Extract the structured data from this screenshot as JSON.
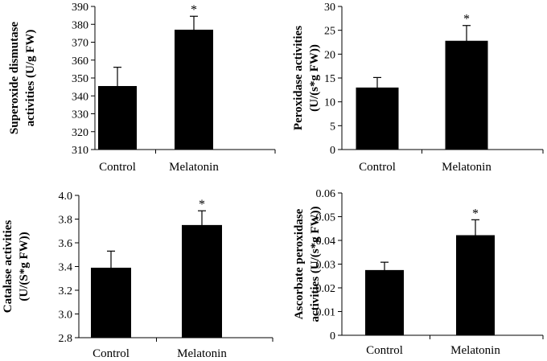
{
  "chart_data": [
    {
      "type": "bar",
      "categories": [
        "Control",
        "Melatonin"
      ],
      "values": [
        345.5,
        377
      ],
      "errors": [
        10.5,
        7.5
      ],
      "significance": [
        "",
        "*"
      ],
      "ylabel_lines": [
        "Superoxide dismutase",
        "activities (U/g FW)"
      ],
      "ylim": [
        310,
        390
      ],
      "ticks": [
        310,
        320,
        330,
        340,
        350,
        360,
        370,
        380,
        390
      ],
      "tick_labels": [
        "310",
        "320",
        "330",
        "340",
        "350",
        "360",
        "370",
        "380",
        "390"
      ],
      "bar_color": "#000000"
    },
    {
      "type": "bar",
      "categories": [
        "Control",
        "Melatonin"
      ],
      "values": [
        13,
        22.8
      ],
      "errors": [
        2.1,
        3.2
      ],
      "significance": [
        "",
        "*"
      ],
      "ylabel_lines": [
        "Peroxidase activities",
        "(U/(s*g FW))"
      ],
      "ylim": [
        0,
        30
      ],
      "ticks": [
        0,
        5,
        10,
        15,
        20,
        25,
        30
      ],
      "tick_labels": [
        "0",
        "5",
        "10",
        "15",
        "20",
        "25",
        "30"
      ],
      "bar_color": "#000000"
    },
    {
      "type": "bar",
      "categories": [
        "Control",
        "Melatonin"
      ],
      "values": [
        3.39,
        3.75
      ],
      "errors": [
        0.14,
        0.12
      ],
      "significance": [
        "",
        "*"
      ],
      "ylabel_lines": [
        "Catalase activities",
        "(U/(S*g FW))"
      ],
      "ylim": [
        2.8,
        4.0
      ],
      "ticks": [
        2.8,
        3.0,
        3.2,
        3.4,
        3.6,
        3.8,
        4.0
      ],
      "tick_labels": [
        "2.8",
        "3.0",
        "3.2",
        "3.4",
        "3.6",
        "3.8",
        "4.0"
      ],
      "bar_color": "#000000"
    },
    {
      "type": "bar",
      "categories": [
        "Control",
        "Melatonin"
      ],
      "values": [
        0.0275,
        0.0422
      ],
      "errors": [
        0.0033,
        0.0065
      ],
      "significance": [
        "",
        "*"
      ],
      "ylabel_lines": [
        "Ascorbate peroxidase",
        "activities (U/(s*g FW))"
      ],
      "ylim": [
        0,
        0.06
      ],
      "ticks": [
        0,
        0.01,
        0.02,
        0.03,
        0.04,
        0.05,
        0.06
      ],
      "tick_labels": [
        "0",
        "0.01",
        "0.02",
        "0.03",
        "0.04",
        "0.05",
        "0.06"
      ],
      "bar_color": "#000000"
    }
  ]
}
